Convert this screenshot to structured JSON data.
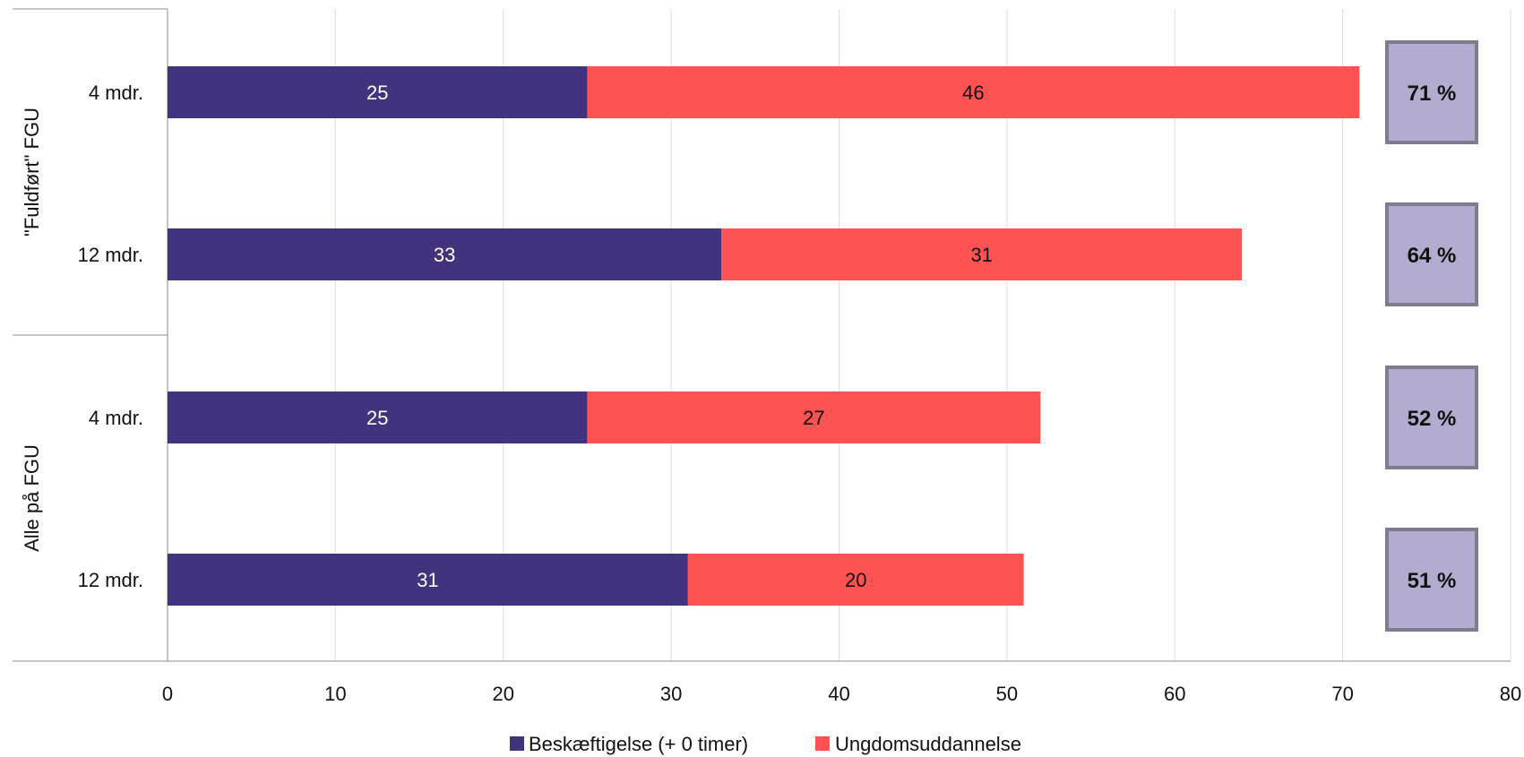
{
  "chart_data": {
    "type": "bar",
    "orientation": "horizontal",
    "stacked": true,
    "groups": [
      {
        "label": "\"Fuldført\" FGU",
        "rows": [
          0,
          1
        ]
      },
      {
        "label": "Alle på FGU",
        "rows": [
          2,
          3
        ]
      }
    ],
    "categories": [
      "4 mdr.",
      "12 mdr.",
      "4 mdr.",
      "12 mdr."
    ],
    "series": [
      {
        "name": "Beskæftigelse (+ 0 timer)",
        "color": "#41337e",
        "values": [
          25,
          33,
          25,
          31
        ]
      },
      {
        "name": "Ungdomsuddannelse",
        "color": "#ff5252",
        "values": [
          46,
          31,
          27,
          20
        ]
      }
    ],
    "totals": [
      "71 %",
      "64 %",
      "52 %",
      "51 %"
    ],
    "total_box_color": "#b3acd0",
    "total_box_border": "#807b8f",
    "xlim": [
      0,
      80
    ],
    "xticks": [
      "0",
      "10",
      "20",
      "30",
      "40",
      "50",
      "60",
      "70",
      "80"
    ],
    "grid": true,
    "legend_position": "bottom",
    "title": "",
    "xlabel": "",
    "ylabel": ""
  }
}
